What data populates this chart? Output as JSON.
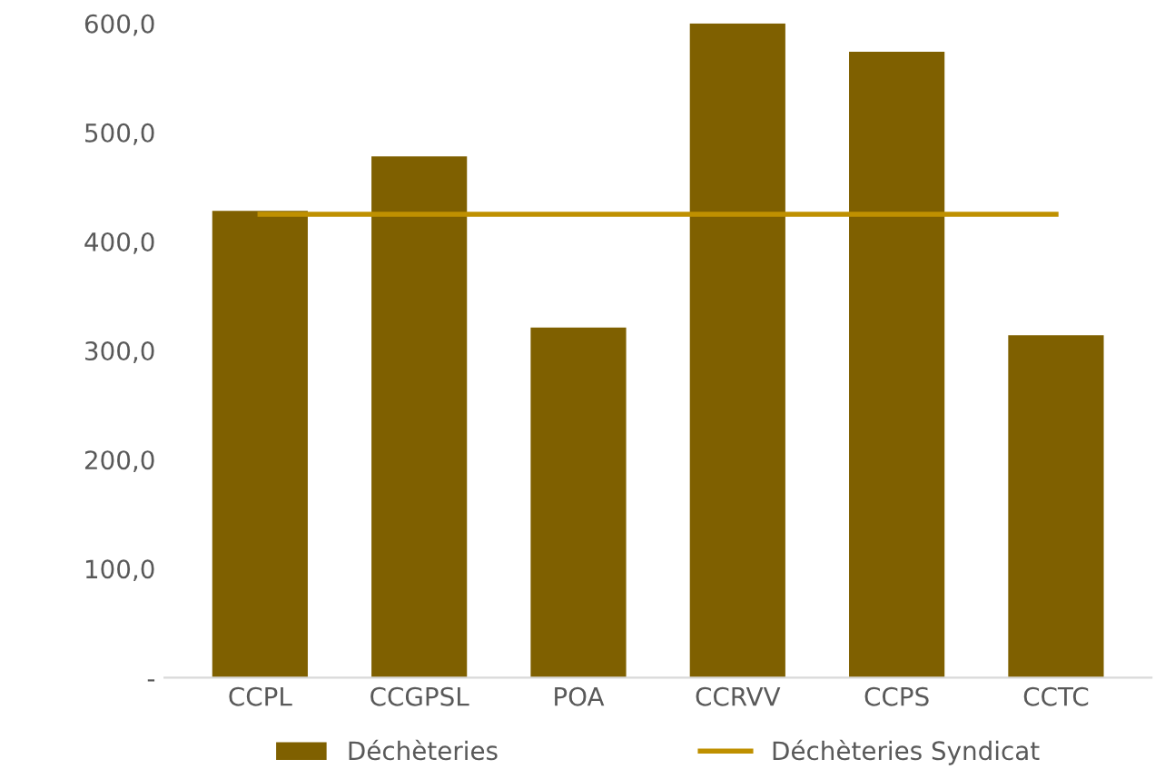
{
  "chart_data": {
    "type": "bar",
    "categories": [
      "CCPL",
      "CCGPSL",
      "POA",
      "CCRVV",
      "CCPS",
      "CCTC"
    ],
    "series": [
      {
        "name": "Déchèteries",
        "color": "#7f6000",
        "values": [
          428,
          478,
          321,
          600,
          574,
          314
        ]
      },
      {
        "name": "Déchèteries Syndicat",
        "type": "line",
        "color": "#bf9000",
        "values": [
          425,
          425,
          425,
          425,
          425,
          425
        ]
      }
    ],
    "ylim": [
      0,
      600
    ],
    "yticks": [
      {
        "value": 0,
        "label": "-"
      },
      {
        "value": 100,
        "label": "100,0"
      },
      {
        "value": 200,
        "label": "200,0"
      },
      {
        "value": 300,
        "label": "300,0"
      },
      {
        "value": 400,
        "label": "400,0"
      },
      {
        "value": 500,
        "label": "500,0"
      },
      {
        "value": 600,
        "label": "600,0"
      }
    ],
    "grid": false,
    "legend": "bottom"
  }
}
